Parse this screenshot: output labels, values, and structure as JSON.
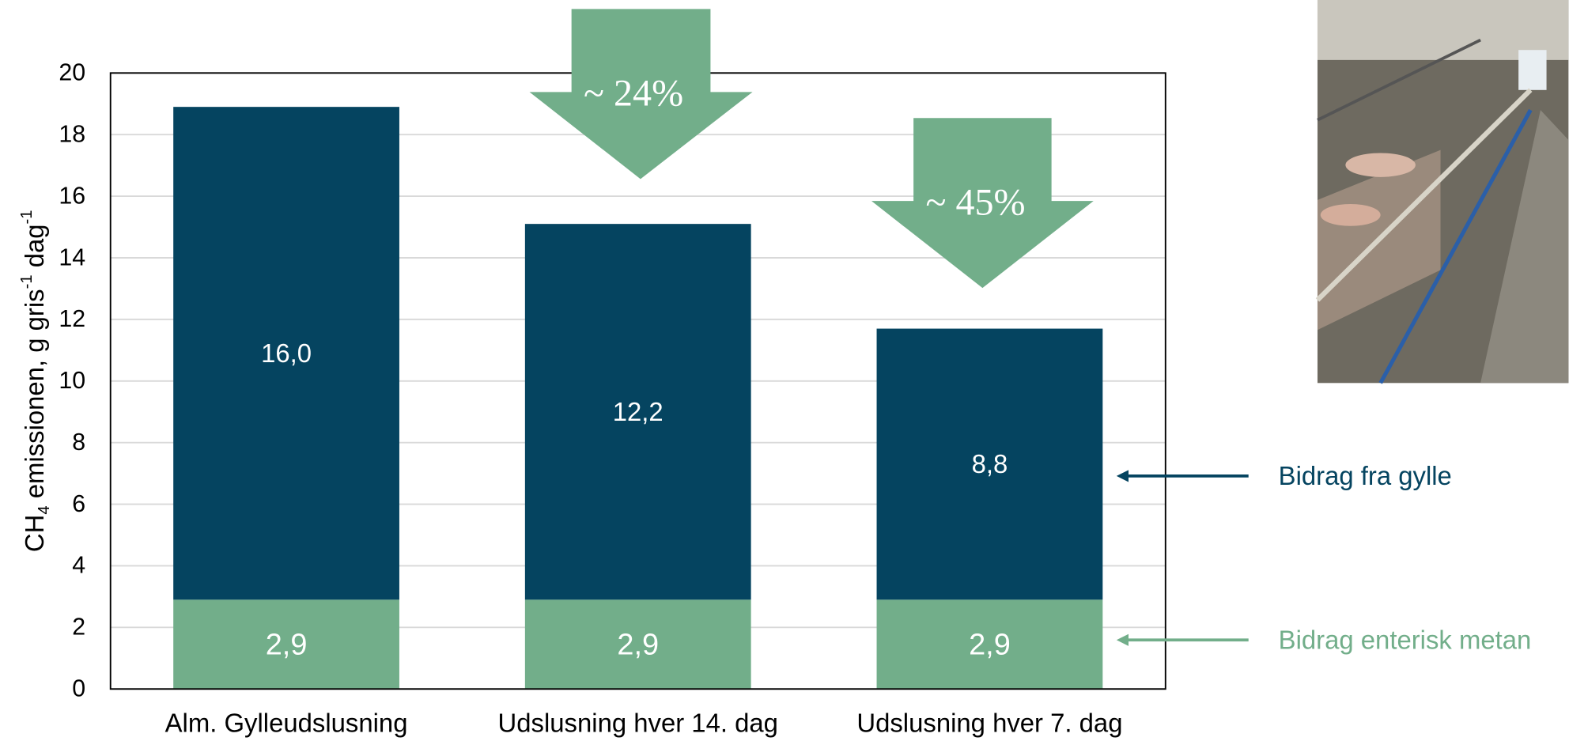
{
  "chart_data": {
    "type": "stacked_bar",
    "categories": [
      "Alm. Gylleudslusning",
      "Udslusning hver 14. dag",
      "Udslusning hver 7. dag"
    ],
    "series": [
      {
        "name": "Bidrag enterisk metan",
        "color": "#72ae8a",
        "values": [
          2.9,
          2.9,
          2.9
        ],
        "value_labels": [
          "2,9",
          "2,9",
          "2,9"
        ]
      },
      {
        "name": "Bidrag fra gylle",
        "color": "#054460",
        "values": [
          16.0,
          12.2,
          8.8
        ],
        "value_labels": [
          "16,0",
          "12,2",
          "8,8"
        ]
      }
    ],
    "ylabel_parts": [
      "CH",
      "4",
      " emissionen, g gris",
      "-1",
      " dag",
      "-1"
    ],
    "ylim": [
      0,
      20
    ],
    "yticks": [
      0,
      2,
      4,
      6,
      8,
      10,
      12,
      14,
      16,
      18,
      20
    ],
    "grid": true,
    "annotations": [
      "~ 24%",
      "~ 45%"
    ]
  }
}
